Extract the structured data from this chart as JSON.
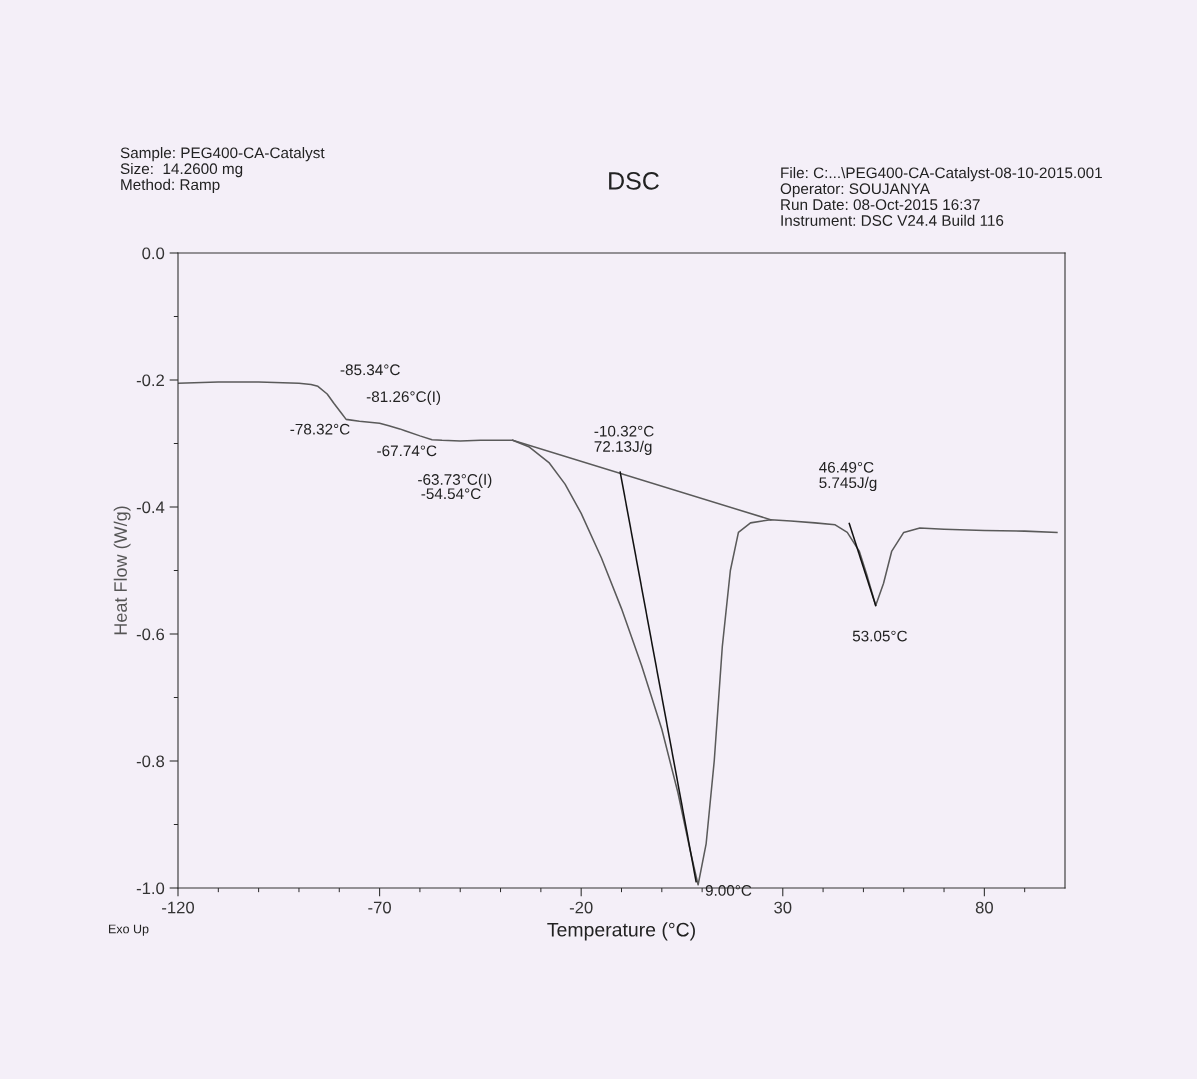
{
  "chart_data": {
    "type": "line",
    "title": "DSC",
    "xlabel": "Temperature (°C)",
    "ylabel": "Heat Flow (W/g)",
    "xlim": [
      -120,
      100
    ],
    "ylim": [
      -1.0,
      0.0
    ],
    "xticks": [
      -120,
      {
        "value": -110,
        "label": null
      },
      {
        "value": -100,
        "label": null
      },
      {
        "value": -90,
        "label": null
      },
      {
        "value": -80,
        "label": null
      },
      -70,
      {
        "value": -60,
        "label": null
      },
      {
        "value": -50,
        "label": null
      },
      {
        "value": -40,
        "label": null
      },
      {
        "value": -30,
        "label": null
      },
      -20,
      {
        "value": -10,
        "label": null
      },
      {
        "value": 0,
        "label": null
      },
      {
        "value": 10,
        "label": null
      },
      {
        "value": 20,
        "label": null
      },
      30,
      {
        "value": 40,
        "label": null
      },
      {
        "value": 50,
        "label": null
      },
      {
        "value": 60,
        "label": null
      },
      {
        "value": 70,
        "label": null
      },
      80,
      {
        "value": 90,
        "label": null
      }
    ],
    "yticks": [
      {
        "value": -1.0,
        "label": "-1.0"
      },
      {
        "value": -0.9,
        "label": null
      },
      -0.8,
      {
        "value": -0.7,
        "label": null
      },
      -0.6,
      {
        "value": -0.5,
        "label": null
      },
      -0.4,
      {
        "value": -0.3,
        "label": null
      },
      -0.2,
      {
        "value": -0.1,
        "label": null
      },
      {
        "value": 0.0,
        "label": "0.0"
      }
    ],
    "grid": false,
    "legend": false,
    "series": [
      {
        "color": "#5a5a5a",
        "x": [
          -120,
          -110,
          -100,
          -90,
          -87,
          -85.3,
          -83,
          -81.3,
          -79.5,
          -78.3,
          -75,
          -70,
          -67.7,
          -65,
          -63.7,
          -60,
          -57,
          -54.5,
          -50,
          -45,
          -40,
          -37,
          -33,
          -28,
          -24,
          -20,
          -15,
          -10,
          -5,
          0,
          4,
          7,
          9,
          11,
          13,
          15,
          17,
          19,
          22,
          27,
          32,
          38,
          43,
          46,
          49,
          51,
          53.05,
          55,
          57,
          60,
          64,
          70,
          80,
          90,
          98
        ],
        "values": [
          -0.205,
          -0.203,
          -0.203,
          -0.205,
          -0.207,
          -0.21,
          -0.222,
          -0.237,
          -0.252,
          -0.262,
          -0.265,
          -0.268,
          -0.272,
          -0.277,
          -0.28,
          -0.288,
          -0.294,
          -0.295,
          -0.296,
          -0.295,
          -0.295,
          -0.295,
          -0.305,
          -0.33,
          -0.364,
          -0.41,
          -0.48,
          -0.56,
          -0.65,
          -0.75,
          -0.85,
          -0.94,
          -0.995,
          -0.93,
          -0.8,
          -0.62,
          -0.5,
          -0.44,
          -0.425,
          -0.42,
          -0.422,
          -0.425,
          -0.428,
          -0.44,
          -0.47,
          -0.51,
          -0.555,
          -0.52,
          -0.47,
          -0.44,
          -0.433,
          -0.435,
          -0.437,
          -0.438,
          -0.44
        ]
      },
      {
        "color": "#5a5a5a",
        "x": [
          -37,
          27
        ],
        "values": [
          -0.295,
          -0.42
        ]
      },
      {
        "color": "#111111",
        "x": [
          -10.32,
          8.5
        ],
        "values": [
          -0.345,
          -0.99
        ]
      },
      {
        "color": "#111111",
        "x": [
          46.49,
          53.05
        ],
        "values": [
          -0.426,
          -0.555
        ]
      }
    ],
    "annotations": [
      "Sample: PEG400-CA-Catalyst\nSize:  14.2600 mg\nMethod: Ramp",
      "File: C:...\\PEG400-CA-Catalyst-08-10-2015.001\nOperator: SOUJANYA\nRun Date: 08-Oct-2015 16:37\nInstrument: DSC V24.4 Build 116",
      "Exo Up",
      {
        "text": "-85.34°C",
        "x": -85.34,
        "y": -0.21
      },
      {
        "text": "-81.26°C(I)",
        "x": -81.26,
        "y": -0.237
      },
      {
        "text": "-78.32°C",
        "x": -78.32,
        "y": -0.262
      },
      {
        "text": "-67.74°C",
        "x": -67.74,
        "y": -0.272
      },
      {
        "text": "-63.73°C(I)",
        "x": -63.73,
        "y": -0.28
      },
      "-54.54°C",
      {
        "text": "-10.32°C\n72.13J/g",
        "x": -10.32,
        "y": -0.345
      },
      {
        "text": "9.00°C",
        "x": 9.0,
        "y": -0.995
      },
      {
        "text": "46.49°C\n5.745J/g",
        "x": 46.49,
        "y": -0.426
      },
      {
        "text": "53.05°C",
        "x": 53.05,
        "y": -0.555
      }
    ]
  }
}
